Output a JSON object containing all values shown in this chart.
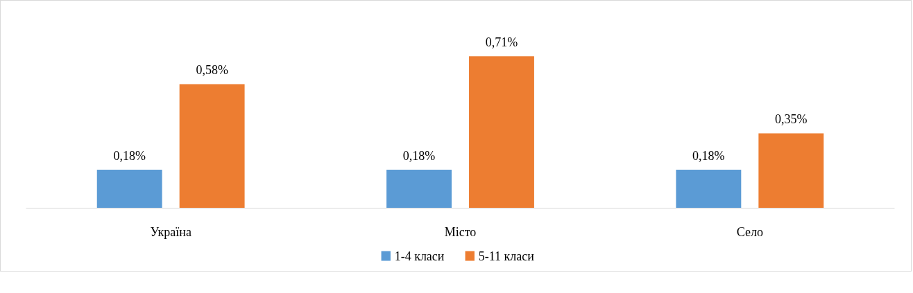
{
  "chart_data": {
    "type": "bar",
    "categories": [
      "Україна",
      "Місто",
      "Село"
    ],
    "series": [
      {
        "name": "1-4 класи",
        "color": "#5b9bd5",
        "values": [
          0.18,
          0.18,
          0.18
        ],
        "value_labels": [
          "0,18%",
          "0,18%",
          "0,18%"
        ]
      },
      {
        "name": "5-11 класи",
        "color": "#ed7d31",
        "values": [
          0.58,
          0.71,
          0.35
        ],
        "value_labels": [
          "0,58%",
          "0,71%",
          "0,35%"
        ]
      }
    ],
    "legend": "bottom"
  }
}
